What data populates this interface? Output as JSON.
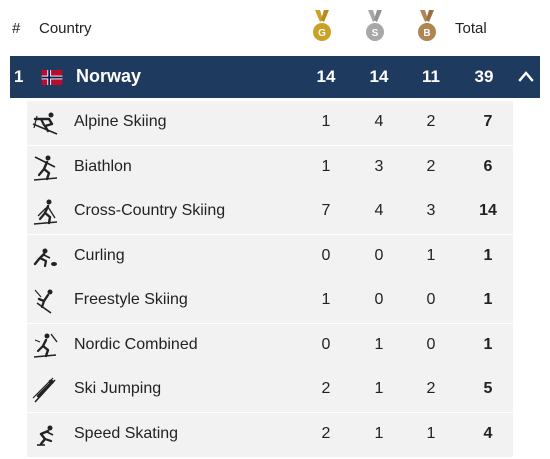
{
  "header": {
    "rank_label": "#",
    "country_label": "Country",
    "gold_letter": "G",
    "silver_letter": "S",
    "bronze_letter": "B",
    "total_label": "Total"
  },
  "colors": {
    "row_dark": "#1e3a5f",
    "row_light": "#f2f2f2",
    "gold": "#c9a227",
    "silver": "#a8a8a8",
    "bronze": "#b08552"
  },
  "country": {
    "rank": "1",
    "name": "Norway",
    "gold": "14",
    "silver": "14",
    "bronze": "11",
    "total": "39",
    "flag_icon": "norway-flag-icon",
    "toggle_icon": "chevron-up-icon"
  },
  "sports": [
    {
      "name": "Alpine Skiing",
      "icon": "alpine-skiing-icon",
      "gold": "1",
      "silver": "4",
      "bronze": "2",
      "total": "7"
    },
    {
      "name": "Biathlon",
      "icon": "biathlon-icon",
      "gold": "1",
      "silver": "3",
      "bronze": "2",
      "total": "6"
    },
    {
      "name": "Cross-Country Skiing",
      "icon": "cross-country-skiing-icon",
      "gold": "7",
      "silver": "4",
      "bronze": "3",
      "total": "14"
    },
    {
      "name": "Curling",
      "icon": "curling-icon",
      "gold": "0",
      "silver": "0",
      "bronze": "1",
      "total": "1"
    },
    {
      "name": "Freestyle Skiing",
      "icon": "freestyle-skiing-icon",
      "gold": "1",
      "silver": "0",
      "bronze": "0",
      "total": "1"
    },
    {
      "name": "Nordic Combined",
      "icon": "nordic-combined-icon",
      "gold": "0",
      "silver": "1",
      "bronze": "0",
      "total": "1"
    },
    {
      "name": "Ski Jumping",
      "icon": "ski-jumping-icon",
      "gold": "2",
      "silver": "1",
      "bronze": "2",
      "total": "5"
    },
    {
      "name": "Speed Skating",
      "icon": "speed-skating-icon",
      "gold": "2",
      "silver": "1",
      "bronze": "1",
      "total": "4"
    }
  ]
}
